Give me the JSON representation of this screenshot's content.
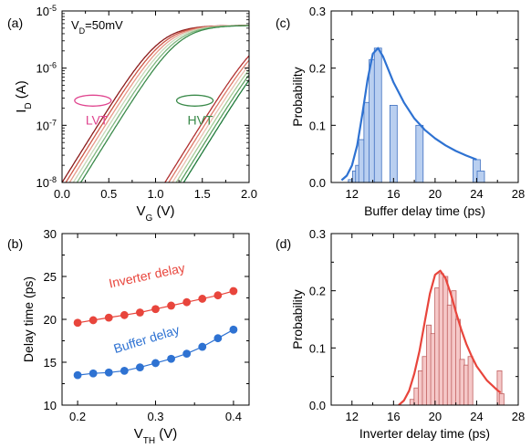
{
  "chart_data": [
    {
      "id": "a",
      "panel_label": "(a)",
      "type": "line",
      "log_y": true,
      "annotation": "V_D=50mV",
      "xlabel": {
        "main": "V",
        "sub": "G",
        "unit": " (V)"
      },
      "ylabel": {
        "main": "I",
        "sub": "D",
        "unit": " (A)"
      },
      "xlim": [
        0,
        2
      ],
      "ylim": [
        1e-08,
        1e-05
      ],
      "x_ticks": [
        0.0,
        0.5,
        1.0,
        1.5,
        2.0
      ],
      "x_tick_labels": [
        "0.0",
        "0.5",
        "1.0",
        "1.5",
        "2.0"
      ],
      "y_ticks": [
        1e-08,
        1e-07,
        1e-06,
        1e-05
      ],
      "y_tick_labels": [
        {
          "base": "10",
          "exp": "-8"
        },
        {
          "base": "10",
          "exp": "-7"
        },
        {
          "base": "10",
          "exp": "-6"
        },
        {
          "base": "10",
          "exp": "-5"
        }
      ],
      "groups": [
        {
          "label": "LVT",
          "label_color": "#e0458f",
          "ellipse_center": [
            0.33,
            2.7e-07
          ],
          "vt_range": [
            0.0,
            0.2
          ]
        },
        {
          "label": "HVT",
          "label_color": "#3a8a4a",
          "ellipse_center": [
            1.42,
            2.7e-07
          ],
          "vt_range": [
            1.1,
            1.3
          ]
        }
      ],
      "curve_colors": [
        "#8b1a1a",
        "#b03030",
        "#cc5544",
        "#dd7766",
        "#e89a8a",
        "#e8c0b0",
        "#c8d8b8",
        "#a8cc98",
        "#80b880",
        "#5aa060",
        "#3a8a4a",
        "#1f7a3a"
      ],
      "curve_model": {
        "i_off": 1e-08,
        "i_sat": 5.6e-06,
        "slope": 0.38
      }
    },
    {
      "id": "c",
      "panel_label": "(c)",
      "type": "bar",
      "xlabel": "Buffer delay time (ps)",
      "ylabel": "Probability",
      "xlim": [
        10,
        28
      ],
      "ylim": [
        0,
        0.3
      ],
      "x_ticks": [
        12,
        16,
        20,
        24,
        28
      ],
      "x_tick_labels": [
        "12",
        "16",
        "20",
        "24",
        "28"
      ],
      "y_ticks": [
        0.0,
        0.1,
        0.2,
        0.3
      ],
      "y_tick_labels": [
        "0.0",
        "0.1",
        "0.2",
        "0.3"
      ],
      "bar_fill": "#b9cff0",
      "bar_stroke": "#3d6fc0",
      "bar_width": 0.7,
      "bars": [
        {
          "x": 12.0,
          "y": 0.005
        },
        {
          "x": 12.4,
          "y": 0.02
        },
        {
          "x": 12.7,
          "y": 0.03
        },
        {
          "x": 13.0,
          "y": 0.075
        },
        {
          "x": 13.5,
          "y": 0.14
        },
        {
          "x": 14.0,
          "y": 0.215
        },
        {
          "x": 14.5,
          "y": 0.235
        },
        {
          "x": 16.0,
          "y": 0.135
        },
        {
          "x": 18.5,
          "y": 0.1
        },
        {
          "x": 24.0,
          "y": 0.04
        },
        {
          "x": 24.4,
          "y": 0.02
        }
      ],
      "fit_color": "#2e72d2",
      "fit": {
        "x": [
          11.0,
          11.5,
          12.0,
          12.5,
          13.0,
          13.5,
          14.0,
          14.5,
          15.0,
          16.0,
          17.0,
          18.0,
          19.0,
          20.0,
          21.0,
          22.0,
          23.0,
          24.0
        ],
        "y": [
          0.004,
          0.012,
          0.03,
          0.065,
          0.12,
          0.18,
          0.225,
          0.235,
          0.22,
          0.175,
          0.14,
          0.112,
          0.092,
          0.077,
          0.065,
          0.055,
          0.047,
          0.04
        ]
      }
    },
    {
      "id": "b",
      "panel_label": "(b)",
      "type": "line",
      "xlabel": {
        "main": "V",
        "sub": "TH",
        "unit": " (V)"
      },
      "ylabel": "Delay time (ps)",
      "xlim": [
        0.18,
        0.42
      ],
      "ylim": [
        10,
        30
      ],
      "x_ticks": [
        0.2,
        0.3,
        0.4
      ],
      "x_tick_labels": [
        "0.2",
        "0.3",
        "0.4"
      ],
      "y_ticks": [
        10,
        15,
        20,
        25,
        30
      ],
      "y_tick_labels": [
        "10",
        "15",
        "20",
        "25",
        "30"
      ],
      "series": [
        {
          "name": "Inverter delay",
          "color": "#e8453c",
          "x": [
            0.2,
            0.22,
            0.24,
            0.26,
            0.28,
            0.3,
            0.32,
            0.34,
            0.36,
            0.38,
            0.4
          ],
          "y": [
            19.6,
            19.9,
            20.2,
            20.5,
            20.8,
            21.2,
            21.6,
            22.0,
            22.4,
            22.8,
            23.3
          ]
        },
        {
          "name": "Buffer delay",
          "color": "#2e72d2",
          "x": [
            0.2,
            0.22,
            0.24,
            0.26,
            0.28,
            0.3,
            0.32,
            0.34,
            0.36,
            0.38,
            0.4
          ],
          "y": [
            13.5,
            13.7,
            13.8,
            14.0,
            14.4,
            14.9,
            15.4,
            16.0,
            16.8,
            17.8,
            18.8
          ]
        }
      ]
    },
    {
      "id": "d",
      "panel_label": "(d)",
      "type": "bar",
      "xlabel": "Inverter delay time (ps)",
      "ylabel": "Probability",
      "xlim": [
        10,
        28
      ],
      "ylim": [
        0,
        0.3
      ],
      "x_ticks": [
        12,
        16,
        20,
        24,
        28
      ],
      "x_tick_labels": [
        "12",
        "16",
        "20",
        "24",
        "28"
      ],
      "y_ticks": [
        0.0,
        0.1,
        0.2,
        0.3
      ],
      "y_tick_labels": [
        "0.0",
        "0.1",
        "0.2",
        "0.3"
      ],
      "bar_fill": "#f5c8c8",
      "bar_stroke": "#c06060",
      "bar_width": 0.45,
      "bars": [
        {
          "x": 17.8,
          "y": 0.01
        },
        {
          "x": 18.2,
          "y": 0.03
        },
        {
          "x": 18.6,
          "y": 0.06
        },
        {
          "x": 19.0,
          "y": 0.085
        },
        {
          "x": 19.4,
          "y": 0.14
        },
        {
          "x": 19.8,
          "y": 0.125
        },
        {
          "x": 20.2,
          "y": 0.205
        },
        {
          "x": 20.6,
          "y": 0.23
        },
        {
          "x": 21.0,
          "y": 0.225
        },
        {
          "x": 21.4,
          "y": 0.175
        },
        {
          "x": 21.8,
          "y": 0.2
        },
        {
          "x": 22.2,
          "y": 0.15
        },
        {
          "x": 22.6,
          "y": 0.08
        },
        {
          "x": 23.0,
          "y": 0.07
        },
        {
          "x": 23.4,
          "y": 0.085
        },
        {
          "x": 26.2,
          "y": 0.06
        },
        {
          "x": 26.4,
          "y": 0.02
        }
      ],
      "fit_color": "#e8453c",
      "fit": {
        "x": [
          16.5,
          17.0,
          17.5,
          18.0,
          18.5,
          19.0,
          19.5,
          20.0,
          20.5,
          21.0,
          21.5,
          22.0,
          22.5,
          23.0,
          23.5,
          24.0,
          25.0,
          26.0,
          26.3
        ],
        "y": [
          0.0,
          0.008,
          0.025,
          0.055,
          0.095,
          0.145,
          0.195,
          0.228,
          0.235,
          0.222,
          0.195,
          0.163,
          0.133,
          0.107,
          0.086,
          0.068,
          0.043,
          0.026,
          0.022
        ]
      }
    }
  ]
}
